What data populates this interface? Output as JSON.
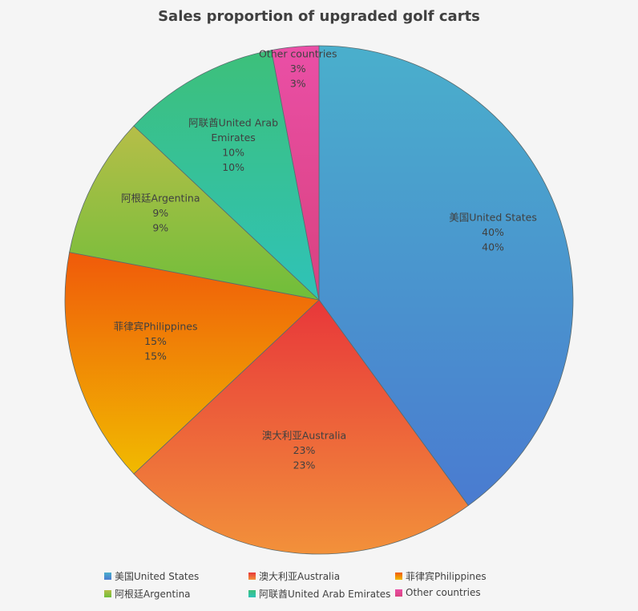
{
  "chart_data": {
    "type": "pie",
    "title": "Sales proportion of upgraded golf carts",
    "categories": [
      "美国United States",
      "澳大利亚Australia",
      "菲律宾Philippines",
      "阿根廷Argentina",
      "阿联酋United Arab Emirates",
      "Other countries"
    ],
    "values": [
      40,
      23,
      15,
      9,
      10,
      3
    ],
    "value_labels": [
      "40%",
      "23%",
      "15%",
      "9%",
      "10%",
      "3%"
    ],
    "slice_label_lines": [
      [
        "美国United States"
      ],
      [
        "澳大利亚Australia"
      ],
      [
        "菲律宾Philippines"
      ],
      [
        "阿根廷Argentina"
      ],
      [
        "阿联酋United Arab",
        "Emirates"
      ],
      [
        "Other countries"
      ]
    ],
    "colors": [
      [
        "#4aafcc",
        "#4a7bd0"
      ],
      [
        "#e8373a",
        "#f2913a"
      ],
      [
        "#f05a0a",
        "#f1ba00"
      ],
      [
        "#b6be48",
        "#6fbe3a"
      ],
      [
        "#3dc07a",
        "#2fc2b8"
      ],
      [
        "#ea4fa6",
        "#d9427f"
      ]
    ],
    "legend_position": "bottom"
  }
}
